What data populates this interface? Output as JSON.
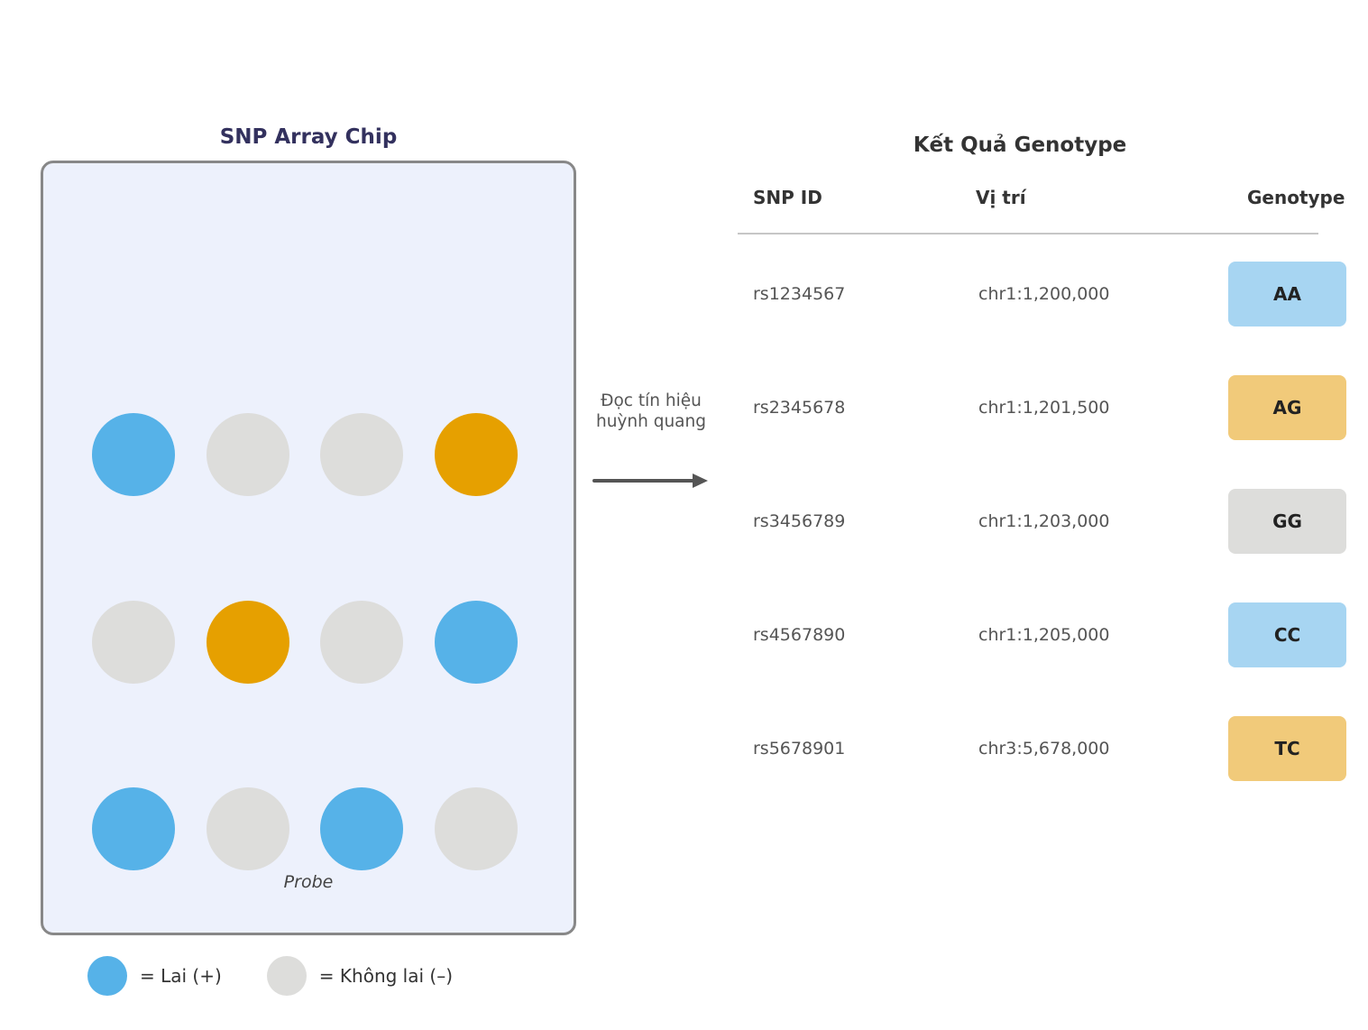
{
  "colors": {
    "dot_blue": "#56b2e8",
    "dot_orange": "#e6a000",
    "dot_gray": "#dddddb",
    "chip_bg": "#edf1fc",
    "chip_border": "#888888",
    "badge_blue": "#a7d5f2",
    "badge_orange": "#f1ca7a",
    "badge_gray": "#dddddb"
  },
  "chip": {
    "title": "SNP Array Chip",
    "probe_label": "Probe",
    "dot_grid": [
      [
        "blue",
        "gray",
        "gray",
        "orange"
      ],
      [
        "gray",
        "orange",
        "gray",
        "blue"
      ],
      [
        "blue",
        "gray",
        "blue",
        "gray"
      ]
    ],
    "legend": [
      {
        "swatch": "blue",
        "label": "= Lai (+)"
      },
      {
        "swatch": "gray",
        "label": "= Không lai (–)"
      }
    ]
  },
  "arrow": {
    "label": "Đọc tín hiệu huỳnh quang"
  },
  "results": {
    "title": "Kết Quả Genotype",
    "headers": [
      "SNP ID",
      "Vị trí",
      "Genotype"
    ],
    "rows": [
      {
        "snp_id": "rs1234567",
        "position": "chr1:1,200,000",
        "genotype": "AA",
        "badge": "blue"
      },
      {
        "snp_id": "rs2345678",
        "position": "chr1:1,201,500",
        "genotype": "AG",
        "badge": "orange"
      },
      {
        "snp_id": "rs3456789",
        "position": "chr1:1,203,000",
        "genotype": "GG",
        "badge": "gray"
      },
      {
        "snp_id": "rs4567890",
        "position": "chr1:1,205,000",
        "genotype": "CC",
        "badge": "blue"
      },
      {
        "snp_id": "rs5678901",
        "position": "chr3:5,678,000",
        "genotype": "TC",
        "badge": "orange"
      }
    ]
  }
}
